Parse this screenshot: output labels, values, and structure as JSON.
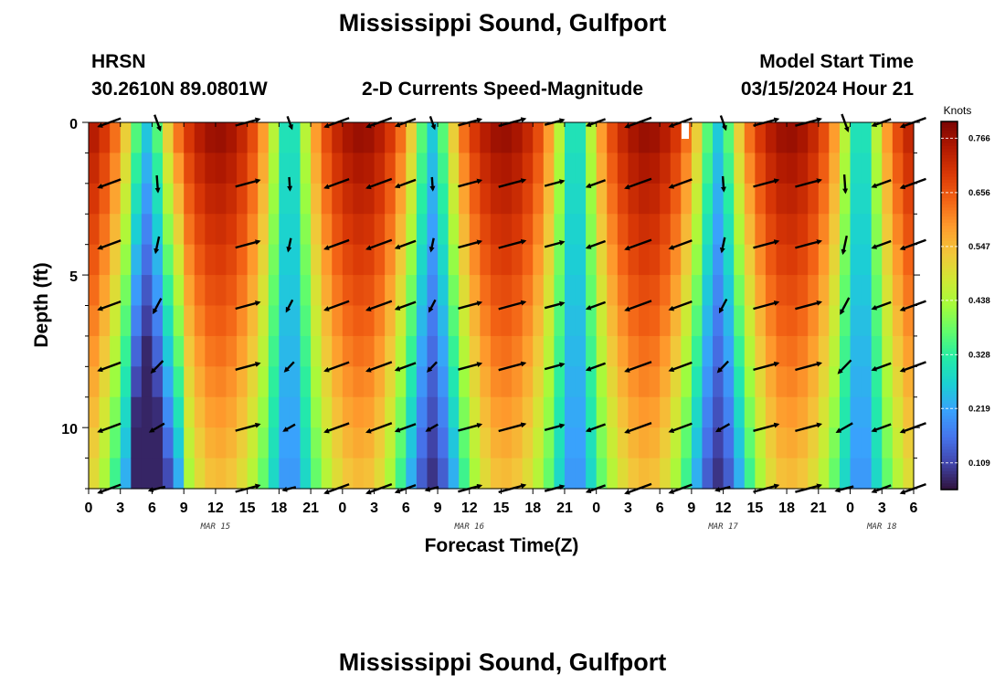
{
  "title": "Mississippi Sound, Gulfport",
  "station_code": "HRSN",
  "station_coords": "30.2610N  89.0801W",
  "chart_subtitle": "2-D Currents Speed-Magnitude",
  "model_label": "Model Start Time",
  "model_time": "03/15/2024 Hour 21",
  "bottom_title": "Mississippi Sound, Gulfport",
  "colors": {
    "palette": [
      "#30123b",
      "#4145ab",
      "#4675ed",
      "#39a2fc",
      "#1bcfd4",
      "#24eca6",
      "#61fc6c",
      "#a4fc3b",
      "#d1e834",
      "#f3c63a",
      "#fe9b2d",
      "#f36315",
      "#d93806",
      "#b11901",
      "#7a0403"
    ]
  },
  "chart_data": {
    "type": "heatmap",
    "xlabel": "Forecast Time(Z)",
    "ylabel": "Depth (ft)",
    "x_unit": "hours since 2024-03-15 00Z",
    "xlim": [
      0,
      78
    ],
    "ylim": [
      0,
      12
    ],
    "x_tick_labels": [
      "0",
      "3",
      "6",
      "9",
      "12",
      "15",
      "18",
      "21",
      "0",
      "3",
      "6",
      "9",
      "12",
      "15",
      "18",
      "21",
      "0",
      "3",
      "6",
      "9",
      "12",
      "15",
      "18",
      "21",
      "0",
      "3",
      "6"
    ],
    "y_tick_labels": [
      "0",
      "5",
      "10"
    ],
    "date_labels": [
      {
        "label": "MAR 15",
        "hour": 12
      },
      {
        "label": "MAR 16",
        "hour": 36
      },
      {
        "label": "MAR 17",
        "hour": 60
      },
      {
        "label": "MAR 18",
        "hour": 75
      }
    ],
    "colorbar": {
      "label": "Knots",
      "min": 0.055,
      "max": 0.8,
      "ticks": [
        "0.766",
        "0.656",
        "0.547",
        "0.438",
        "0.328",
        "0.219",
        "0.109"
      ]
    },
    "vector_times": [
      2,
      6.5,
      15,
      19,
      23.5,
      27.5,
      30,
      32.5,
      36,
      40,
      44,
      48,
      52,
      56,
      60,
      64,
      68,
      71.5,
      75,
      78
    ],
    "vector_depths": [
      0,
      2,
      4,
      6,
      8,
      10,
      12
    ]
  }
}
